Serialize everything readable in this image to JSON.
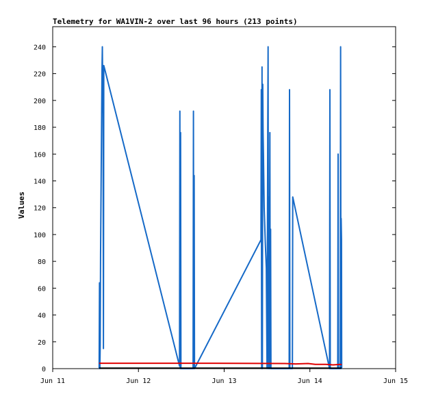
{
  "chart_data": {
    "type": "line",
    "title": "Telemetry for WA1VIN-2 over last 96 hours (213 points)",
    "xlabel": "",
    "ylabel": "Values",
    "ylim": [
      0,
      255
    ],
    "xlim": [
      0,
      96
    ],
    "y_ticks": [
      0,
      20,
      40,
      60,
      80,
      100,
      120,
      140,
      160,
      180,
      200,
      220,
      240
    ],
    "x_ticks": [
      {
        "x": 0,
        "label": "Jun 11"
      },
      {
        "x": 24,
        "label": "Jun 12"
      },
      {
        "x": 48,
        "label": "Jun 13"
      },
      {
        "x": 72,
        "label": "Jun 14"
      },
      {
        "x": 96,
        "label": "Jun 15"
      }
    ],
    "grid": false,
    "legend": "none",
    "colors": {
      "blue": "#1569c7",
      "red": "#e00000",
      "black": "#000000"
    },
    "series": [
      {
        "color": "#1569c7",
        "points": [
          [
            13.0,
            0
          ],
          [
            13.1,
            64
          ],
          [
            13.2,
            0
          ],
          [
            13.3,
            18
          ],
          [
            13.4,
            85
          ],
          [
            13.5,
            120
          ],
          [
            13.6,
            155
          ],
          [
            13.7,
            189
          ],
          [
            13.8,
            223
          ],
          [
            13.9,
            240
          ],
          [
            14.0,
            208
          ],
          [
            14.1,
            190
          ],
          [
            14.2,
            15
          ],
          [
            14.3,
            226
          ],
          [
            14.5,
            224
          ],
          [
            35.5,
            2
          ],
          [
            35.6,
            192
          ],
          [
            35.7,
            0
          ],
          [
            35.8,
            176
          ],
          [
            35.9,
            0
          ],
          [
            39.3,
            0
          ],
          [
            39.4,
            192
          ],
          [
            39.5,
            0
          ],
          [
            39.6,
            144
          ],
          [
            39.7,
            0
          ],
          [
            58.3,
            96
          ],
          [
            58.4,
            208
          ],
          [
            58.5,
            0
          ],
          [
            58.6,
            225
          ],
          [
            58.7,
            0
          ],
          [
            58.8,
            212
          ],
          [
            58.9,
            176
          ],
          [
            59.0,
            160
          ],
          [
            59.2,
            120
          ],
          [
            59.5,
            95
          ],
          [
            59.8,
            75
          ],
          [
            60.0,
            0
          ],
          [
            60.2,
            176
          ],
          [
            60.3,
            240
          ],
          [
            60.4,
            0
          ],
          [
            60.5,
            128
          ],
          [
            60.6,
            0
          ],
          [
            60.8,
            176
          ],
          [
            60.9,
            0
          ],
          [
            61.0,
            104
          ],
          [
            61.1,
            0
          ],
          [
            66.2,
            0
          ],
          [
            66.3,
            208
          ],
          [
            66.4,
            0
          ],
          [
            67.1,
            0
          ],
          [
            67.2,
            128
          ],
          [
            77.5,
            0
          ],
          [
            77.6,
            208
          ],
          [
            77.7,
            0
          ],
          [
            79.8,
            0
          ],
          [
            79.9,
            160
          ],
          [
            80.0,
            0
          ],
          [
            80.5,
            0
          ],
          [
            80.6,
            240
          ],
          [
            80.7,
            0
          ],
          [
            80.75,
            112
          ],
          [
            80.85,
            96
          ],
          [
            80.9,
            0
          ]
        ]
      },
      {
        "color": "#e00000",
        "points": [
          [
            13.0,
            4
          ],
          [
            45.0,
            4
          ],
          [
            65.0,
            3.8
          ],
          [
            68.0,
            3.5
          ],
          [
            71.5,
            3.8
          ],
          [
            73.5,
            3.2
          ],
          [
            76.5,
            3.2
          ],
          [
            78.5,
            2.8
          ],
          [
            80.5,
            3.2
          ],
          [
            80.9,
            3
          ]
        ]
      },
      {
        "color": "#000000",
        "points": [
          [
            13.0,
            0.4
          ],
          [
            80.9,
            0.4
          ]
        ]
      }
    ]
  }
}
